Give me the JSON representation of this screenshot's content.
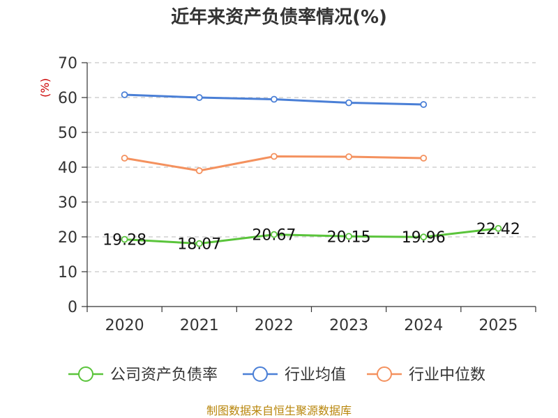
{
  "chart_data": {
    "type": "line",
    "title": "近年来资产负债率情况(%)",
    "ylabel": "(%)",
    "categories": [
      "2020",
      "2021",
      "2022",
      "2023",
      "2024",
      "2025"
    ],
    "ylim": [
      0,
      70
    ],
    "yticks": [
      0,
      10,
      20,
      30,
      40,
      50,
      60,
      70
    ],
    "grid": true,
    "legend_position": "bottom",
    "series": [
      {
        "name": "公司资产负债率",
        "color": "#5ac43b",
        "values": [
          19.28,
          18.07,
          20.67,
          20.15,
          19.96,
          22.42
        ],
        "labels": [
          "19.28",
          "18.07",
          "20.67",
          "20.15",
          "19.96",
          "22.42"
        ]
      },
      {
        "name": "行业均值",
        "color": "#4a7fd6",
        "values": [
          60.8,
          60.0,
          59.5,
          58.5,
          58.0,
          null
        ]
      },
      {
        "name": "行业中位数",
        "color": "#f4915e",
        "values": [
          42.6,
          39.0,
          43.1,
          43.0,
          42.6,
          null
        ]
      }
    ]
  },
  "source": "制图数据来自恒生聚源数据库"
}
